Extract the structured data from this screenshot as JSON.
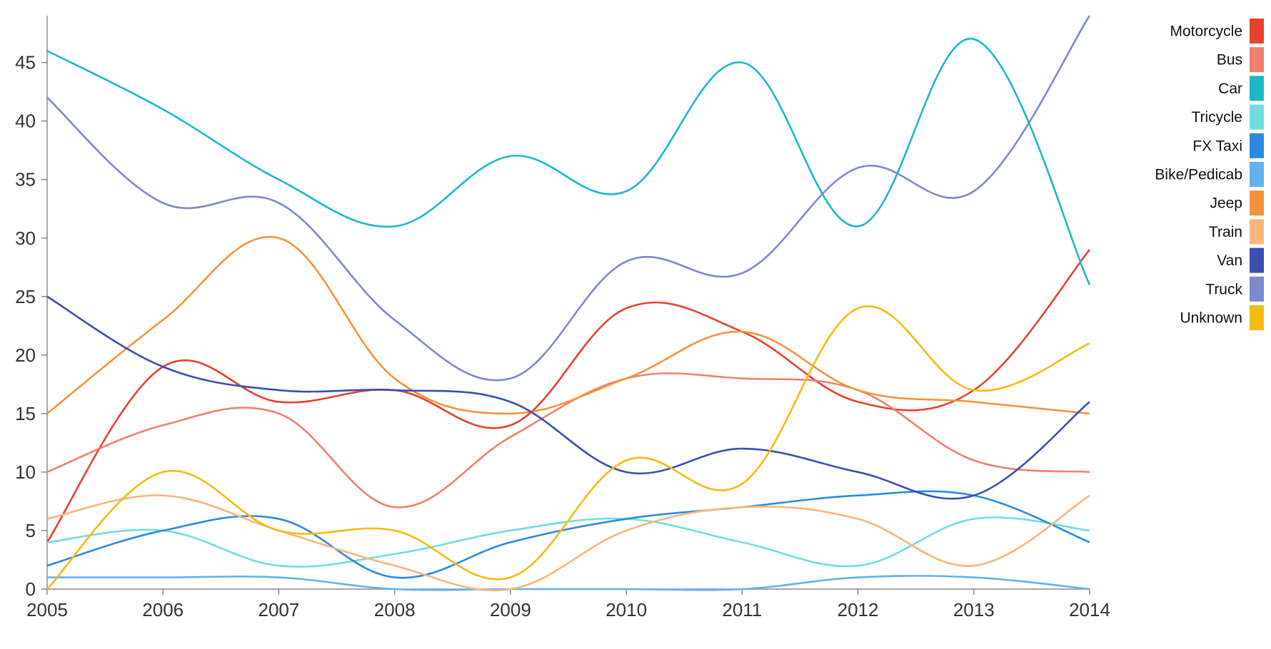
{
  "chart_data": {
    "type": "line",
    "x": [
      "2005",
      "2006",
      "2007",
      "2008",
      "2009",
      "2010",
      "2011",
      "2012",
      "2013",
      "2014"
    ],
    "ylim": [
      0,
      49
    ],
    "yticks": [
      0,
      5,
      10,
      15,
      20,
      25,
      30,
      35,
      40,
      45
    ],
    "grid": false,
    "legend_position": "right",
    "series": [
      {
        "name": "Motorcycle",
        "color": "#e8412e",
        "values": [
          4,
          19,
          16,
          17,
          14,
          24,
          22,
          16,
          17,
          29
        ]
      },
      {
        "name": "Bus",
        "color": "#f0806f",
        "values": [
          10,
          14,
          15,
          7,
          13,
          18,
          18,
          17,
          11,
          10
        ]
      },
      {
        "name": "Car",
        "color": "#1cb8c8",
        "values": [
          46,
          41,
          35,
          31,
          37,
          34,
          45,
          31,
          47,
          26
        ]
      },
      {
        "name": "Tricycle",
        "color": "#72dde0",
        "values": [
          4,
          5,
          2,
          3,
          5,
          6,
          4,
          2,
          6,
          5
        ]
      },
      {
        "name": "FX Taxi",
        "color": "#2a8ae2",
        "values": [
          2,
          5,
          6,
          1,
          4,
          6,
          7,
          8,
          8,
          4
        ]
      },
      {
        "name": "Bike/Pedicab",
        "color": "#62b2f0",
        "values": [
          1,
          1,
          1,
          0,
          0,
          0,
          0,
          1,
          1,
          0
        ]
      },
      {
        "name": "Jeep",
        "color": "#f7923a",
        "values": [
          15,
          23,
          30,
          18,
          15,
          18,
          22,
          17,
          16,
          15
        ]
      },
      {
        "name": "Train",
        "color": "#fbb57c",
        "values": [
          6,
          8,
          5,
          2,
          0,
          5,
          7,
          6,
          2,
          8
        ]
      },
      {
        "name": "Van",
        "color": "#3a4fb0",
        "values": [
          25,
          19,
          17,
          17,
          16,
          10,
          12,
          10,
          8,
          16
        ]
      },
      {
        "name": "Truck",
        "color": "#7e89cb",
        "values": [
          42,
          33,
          33,
          23,
          18,
          28,
          27,
          36,
          34,
          49
        ]
      },
      {
        "name": "Unknown",
        "color": "#f5bb12",
        "values": [
          0,
          10,
          5,
          5,
          1,
          11,
          9,
          24,
          17,
          21
        ]
      }
    ]
  }
}
